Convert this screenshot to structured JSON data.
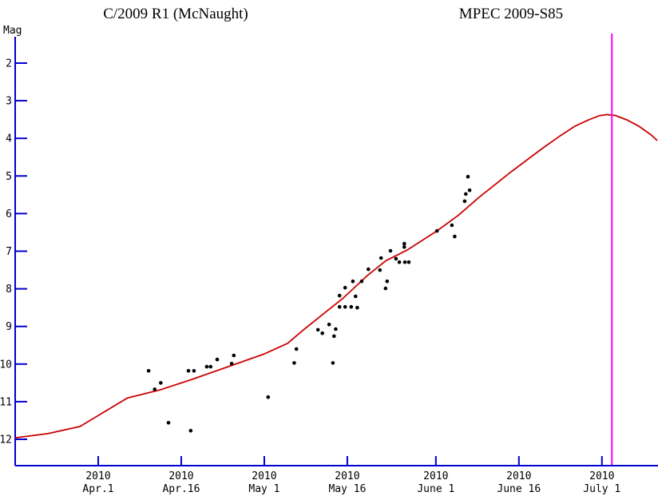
{
  "titles": {
    "left": "C/2009 R1 (McNaught)",
    "right": "MPEC 2009-S85"
  },
  "y_axis_label": "Mag",
  "chart_data": {
    "type": "scatter",
    "title": "C/2009 R1 (McNaught)",
    "subtitle": "MPEC 2009-S85",
    "ylabel": "Mag",
    "y_inverted": true,
    "y_ticks": [
      2,
      3,
      4,
      5,
      6,
      7,
      8,
      9,
      10,
      11,
      12
    ],
    "ylim_top": 1.3,
    "ylim_bottom": 12.7,
    "x_unit": "days since 2010 Apr 1.0",
    "xlim_days": [
      -15.0,
      101.0
    ],
    "x_ticks": [
      {
        "day": 0,
        "year": "2010",
        "date": "Apr.1"
      },
      {
        "day": 15,
        "year": "2010",
        "date": "Apr.16"
      },
      {
        "day": 30,
        "year": "2010",
        "date": "May 1"
      },
      {
        "day": 45,
        "year": "2010",
        "date": "May 16"
      },
      {
        "day": 61,
        "year": "2010",
        "date": "June 1"
      },
      {
        "day": 76,
        "year": "2010",
        "date": "June 16"
      },
      {
        "day": 91,
        "year": "2010",
        "date": "July 1"
      }
    ],
    "observations": [
      [
        9.1,
        10.18
      ],
      [
        10.2,
        10.67
      ],
      [
        11.3,
        10.5
      ],
      [
        12.7,
        11.56
      ],
      [
        16.7,
        11.77
      ],
      [
        16.3,
        10.18
      ],
      [
        17.3,
        10.18
      ],
      [
        19.6,
        10.07
      ],
      [
        20.3,
        10.07
      ],
      [
        21.5,
        9.88
      ],
      [
        24.1,
        9.99
      ],
      [
        24.5,
        9.77
      ],
      [
        30.7,
        10.88
      ],
      [
        35.4,
        9.97
      ],
      [
        35.8,
        9.6
      ],
      [
        39.7,
        9.09
      ],
      [
        40.5,
        9.18
      ],
      [
        41.7,
        8.95
      ],
      [
        42.9,
        9.07
      ],
      [
        42.6,
        9.26
      ],
      [
        42.4,
        9.97
      ],
      [
        43.6,
        8.18
      ],
      [
        46.5,
        8.2
      ],
      [
        43.6,
        8.48
      ],
      [
        44.6,
        8.48
      ],
      [
        45.7,
        8.48
      ],
      [
        46.8,
        8.5
      ],
      [
        44.6,
        7.97
      ],
      [
        46.0,
        7.8
      ],
      [
        47.6,
        7.8
      ],
      [
        48.8,
        7.48
      ],
      [
        50.9,
        7.5
      ],
      [
        52.2,
        7.8
      ],
      [
        51.9,
        7.99
      ],
      [
        52.8,
        6.99
      ],
      [
        51.1,
        7.18
      ],
      [
        53.8,
        7.2
      ],
      [
        54.4,
        7.29
      ],
      [
        55.4,
        7.29
      ],
      [
        56.1,
        7.29
      ],
      [
        55.3,
        6.8
      ],
      [
        55.3,
        6.89
      ],
      [
        61.2,
        6.46
      ],
      [
        63.9,
        6.31
      ],
      [
        64.4,
        6.61
      ],
      [
        66.8,
        5.02
      ],
      [
        67.1,
        5.38
      ],
      [
        66.4,
        5.48
      ],
      [
        66.2,
        5.67
      ]
    ],
    "model_curve": [
      [
        -15.0,
        11.96
      ],
      [
        -9.1,
        11.85
      ],
      [
        -3.3,
        11.66
      ],
      [
        5.3,
        10.9
      ],
      [
        11.1,
        10.69
      ],
      [
        16.9,
        10.41
      ],
      [
        22.7,
        10.11
      ],
      [
        30.0,
        9.73
      ],
      [
        34.2,
        9.45
      ],
      [
        37.0,
        9.1
      ],
      [
        40.4,
        8.7
      ],
      [
        44.3,
        8.24
      ],
      [
        48.6,
        7.65
      ],
      [
        52.0,
        7.25
      ],
      [
        55.8,
        6.97
      ],
      [
        61.2,
        6.46
      ],
      [
        65.0,
        6.05
      ],
      [
        68.8,
        5.57
      ],
      [
        71.7,
        5.23
      ],
      [
        74.6,
        4.89
      ],
      [
        77.5,
        4.57
      ],
      [
        80.4,
        4.25
      ],
      [
        83.3,
        3.95
      ],
      [
        86.1,
        3.68
      ],
      [
        88.6,
        3.51
      ],
      [
        90.5,
        3.4
      ],
      [
        91.9,
        3.37
      ],
      [
        93.4,
        3.39
      ],
      [
        95.5,
        3.51
      ],
      [
        97.7,
        3.68
      ],
      [
        99.9,
        3.91
      ],
      [
        101.0,
        4.06
      ]
    ],
    "vertical_line_day": 92.8,
    "colors": {
      "axis": "#0000CC",
      "curve": "#CC0000",
      "points": "#000000",
      "vertical_line": "#FF00FF",
      "text": "#000000",
      "background": "#FFFFFF"
    }
  }
}
